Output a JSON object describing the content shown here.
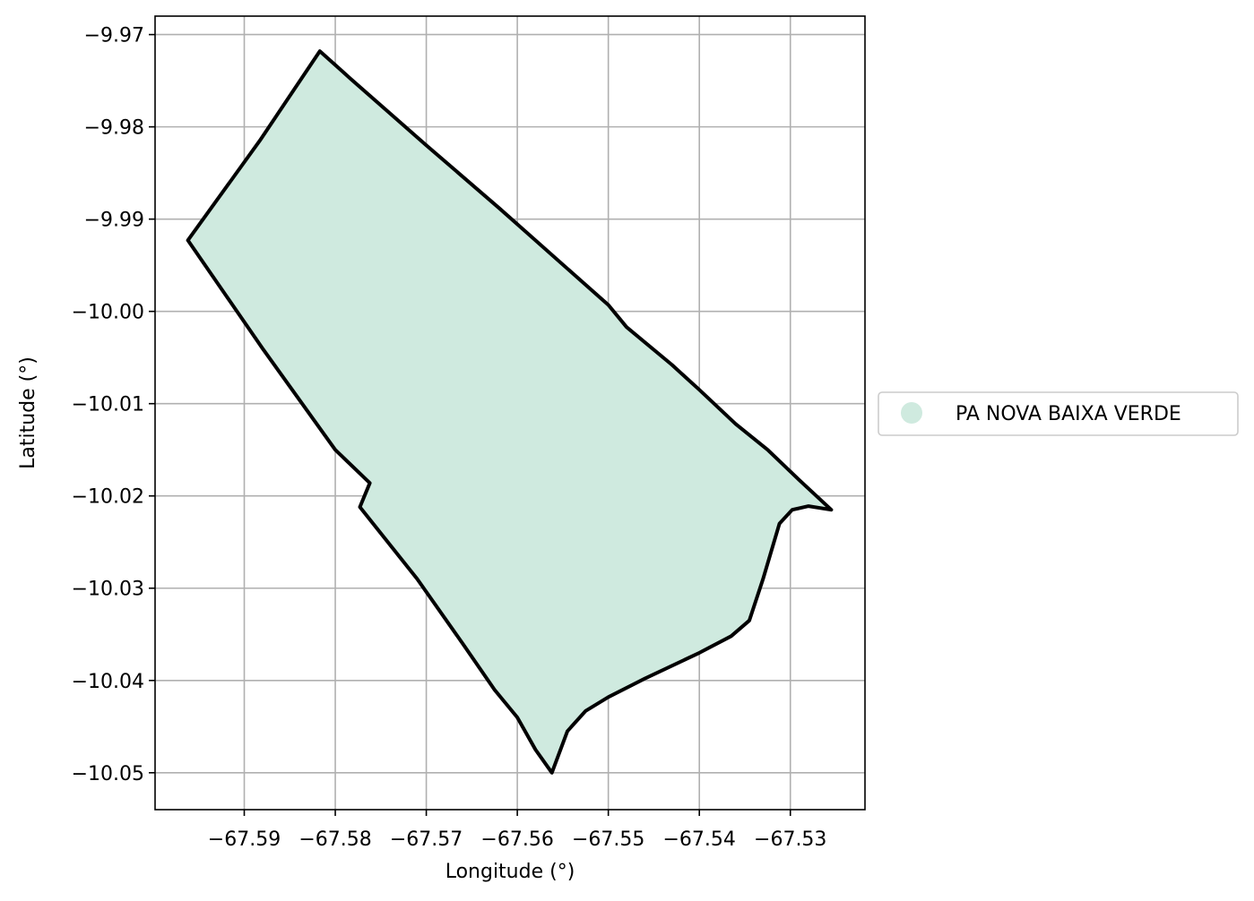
{
  "chart_data": {
    "type": "map",
    "xlabel": "Longitude (°)",
    "ylabel": "Latitude (°)",
    "xlim": [
      -67.5998,
      -67.5218
    ],
    "ylim": [
      -10.054,
      -9.968
    ],
    "grid": true,
    "x_ticks": [
      {
        "value": -67.59,
        "label": "−67.59"
      },
      {
        "value": -67.58,
        "label": "−67.58"
      },
      {
        "value": -67.57,
        "label": "−67.57"
      },
      {
        "value": -67.56,
        "label": "−67.56"
      },
      {
        "value": -67.55,
        "label": "−67.55"
      },
      {
        "value": -67.54,
        "label": "−67.54"
      },
      {
        "value": -67.53,
        "label": "−67.53"
      }
    ],
    "y_ticks": [
      {
        "value": -9.97,
        "label": "−9.97"
      },
      {
        "value": -9.98,
        "label": "−9.98"
      },
      {
        "value": -9.99,
        "label": "−9.99"
      },
      {
        "value": -10.0,
        "label": "−10.00"
      },
      {
        "value": -10.01,
        "label": "−10.01"
      },
      {
        "value": -10.02,
        "label": "−10.02"
      },
      {
        "value": -10.03,
        "label": "−10.03"
      },
      {
        "value": -10.04,
        "label": "−10.04"
      },
      {
        "value": -10.05,
        "label": "−10.05"
      }
    ],
    "legend_placement": "outside-right",
    "series": [
      {
        "name": "PA NOVA BAIXA VERDE",
        "fill_color": "#cfeadf",
        "edge_color": "#000000",
        "boundary": [
          [
            -67.5817,
            -9.9718
          ],
          [
            -67.5783,
            -9.9748
          ],
          [
            -67.57,
            -9.982
          ],
          [
            -67.562,
            -9.9888
          ],
          [
            -67.554,
            -9.9958
          ],
          [
            -67.55,
            -9.9993
          ],
          [
            -67.548,
            -10.0017
          ],
          [
            -67.543,
            -10.0058
          ],
          [
            -67.54,
            -10.0085
          ],
          [
            -67.536,
            -10.0122
          ],
          [
            -67.5325,
            -10.015
          ],
          [
            -67.529,
            -10.0183
          ],
          [
            -67.5255,
            -10.0215
          ],
          [
            -67.528,
            -10.0211
          ],
          [
            -67.5298,
            -10.0215
          ],
          [
            -67.5312,
            -10.023
          ],
          [
            -67.533,
            -10.029
          ],
          [
            -67.5345,
            -10.0335
          ],
          [
            -67.5365,
            -10.0352
          ],
          [
            -67.54,
            -10.037
          ],
          [
            -67.546,
            -10.0398
          ],
          [
            -67.55,
            -10.0418
          ],
          [
            -67.5525,
            -10.0433
          ],
          [
            -67.5545,
            -10.0455
          ],
          [
            -67.5562,
            -10.05
          ],
          [
            -67.558,
            -10.0475
          ],
          [
            -67.56,
            -10.044
          ],
          [
            -67.5625,
            -10.041
          ],
          [
            -67.566,
            -10.036
          ],
          [
            -67.571,
            -10.029
          ],
          [
            -67.5773,
            -10.0212
          ],
          [
            -67.5762,
            -10.0186
          ],
          [
            -67.58,
            -10.015
          ],
          [
            -67.588,
            -10.004
          ],
          [
            -67.5962,
            -9.9923
          ],
          [
            -67.5883,
            -9.9815
          ],
          [
            -67.5817,
            -9.9718
          ]
        ]
      }
    ]
  }
}
